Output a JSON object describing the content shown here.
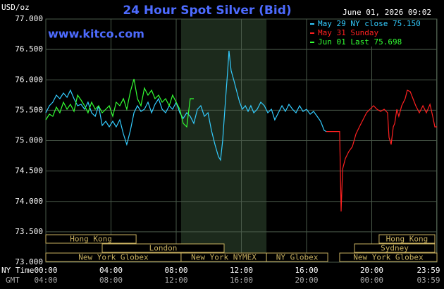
{
  "chart_data": {
    "type": "line",
    "title": "24 Hour Spot Silver (Bid)",
    "unit_label": "USD/oz",
    "timestamp": "June 01, 2026 09:02",
    "watermark": "www.kitco.com",
    "x_label": "NY Time",
    "x2_label": "GMT",
    "xlim": [
      0,
      24
    ],
    "xticks": [
      {
        "value": 0,
        "label": "00:00"
      },
      {
        "value": 4,
        "label": "04:00"
      },
      {
        "value": 8,
        "label": "08:00"
      },
      {
        "value": 12,
        "label": "12:00"
      },
      {
        "value": 16,
        "label": "16:00"
      },
      {
        "value": 20,
        "label": "20:00"
      },
      {
        "value": 23.98,
        "label": "23:59"
      }
    ],
    "gmt_labels": [
      "04:00",
      "08:00",
      "12:00",
      "16:00",
      "20:00",
      "00:00",
      "03:59"
    ],
    "ylim": [
      73,
      77
    ],
    "yticks": [
      {
        "value": 73,
        "label": "73.000"
      },
      {
        "value": 73.5,
        "label": "73.500"
      },
      {
        "value": 74,
        "label": "74.000"
      },
      {
        "value": 74.5,
        "label": "74.500"
      },
      {
        "value": 75,
        "label": "75.000"
      },
      {
        "value": 75.5,
        "label": "75.500"
      },
      {
        "value": 76,
        "label": "76.000"
      },
      {
        "value": 76.5,
        "label": "76.500"
      },
      {
        "value": 77,
        "label": "77.000"
      }
    ],
    "grid": true,
    "legend": "top-right",
    "market_hours": [
      [
        {
          "name": "Hong Kong",
          "start": 0,
          "end": 5.54
        },
        {
          "name": "Hong Kong",
          "start": 20.45,
          "end": 23.87
        }
      ],
      [
        {
          "name": "London",
          "start": 3.46,
          "end": 10.94
        },
        {
          "name": "Sydney",
          "start": 18.94,
          "end": 23.87
        }
      ],
      [
        {
          "name": "New York Globex",
          "start": 0,
          "end": 8.3
        },
        {
          "name": "New York NYMEX",
          "start": 8.3,
          "end": 13.54
        },
        {
          "name": "NY Globex",
          "start": 13.54,
          "end": 17.3
        },
        {
          "name": "New York Globex",
          "start": 18.03,
          "end": 24
        }
      ]
    ],
    "series": [
      {
        "name": "May 29 NY close 75.150",
        "color": "#33ccff",
        "x": [
          0,
          0.22,
          0.43,
          0.65,
          0.86,
          1.08,
          1.3,
          1.51,
          1.73,
          1.95,
          2.16,
          2.38,
          2.59,
          2.81,
          3.03,
          3.24,
          3.46,
          3.68,
          3.89,
          4.11,
          4.32,
          4.54,
          4.76,
          4.97,
          5.19,
          5.41,
          5.62,
          5.84,
          6.05,
          6.27,
          6.49,
          6.7,
          6.92,
          7.14,
          7.35,
          7.57,
          7.78,
          8,
          8.22,
          8.43,
          8.65,
          8.86,
          9.08,
          9.3,
          9.51,
          9.73,
          9.95,
          10.16,
          10.38,
          10.59,
          10.72,
          10.85,
          11.03,
          11.16,
          11.24,
          11.37,
          11.55,
          11.72,
          11.89,
          12.06,
          12.24,
          12.41,
          12.58,
          12.76,
          12.97,
          13.19,
          13.41,
          13.62,
          13.84,
          14.05,
          14.27,
          14.49,
          14.7,
          14.92,
          15.14,
          15.35,
          15.57,
          15.78,
          16,
          16.22,
          16.43,
          16.65,
          16.86,
          17.08,
          17.21
        ],
        "values": [
          75.458,
          75.574,
          75.632,
          75.748,
          75.69,
          75.783,
          75.713,
          75.829,
          75.69,
          75.574,
          75.597,
          75.516,
          75.632,
          75.458,
          75.4,
          75.574,
          75.249,
          75.319,
          75.226,
          75.319,
          75.226,
          75.342,
          75.11,
          74.936,
          75.168,
          75.458,
          75.574,
          75.481,
          75.516,
          75.632,
          75.458,
          75.597,
          75.69,
          75.516,
          75.458,
          75.574,
          75.516,
          75.632,
          75.458,
          75.365,
          75.458,
          75.4,
          75.284,
          75.516,
          75.574,
          75.4,
          75.458,
          75.168,
          74.936,
          74.739,
          74.681,
          74.994,
          75.69,
          76.154,
          76.478,
          76.154,
          75.98,
          75.806,
          75.632,
          75.516,
          75.574,
          75.481,
          75.574,
          75.458,
          75.516,
          75.632,
          75.574,
          75.458,
          75.516,
          75.342,
          75.458,
          75.574,
          75.481,
          75.597,
          75.516,
          75.458,
          75.574,
          75.481,
          75.516,
          75.435,
          75.481,
          75.4,
          75.319,
          75.168,
          75.15
        ]
      },
      {
        "name": "May 31 Sunday",
        "color": "#ff2020",
        "x": [
          17.21,
          18.03,
          18.08,
          18.12,
          18.21,
          18.38,
          18.59,
          18.81,
          19.03,
          19.24,
          19.46,
          19.68,
          19.89,
          20.11,
          20.32,
          20.54,
          20.76,
          20.97,
          21.06,
          21.19,
          21.32,
          21.41,
          21.54,
          21.66,
          21.84,
          22.05,
          22.18,
          22.36,
          22.53,
          22.7,
          22.92,
          23.14,
          23.35,
          23.57,
          23.74,
          23.87,
          24
        ],
        "values": [
          75.15,
          75.15,
          74.415,
          73.835,
          74.53,
          74.704,
          74.82,
          74.902,
          75.11,
          75.226,
          75.342,
          75.458,
          75.516,
          75.574,
          75.516,
          75.481,
          75.516,
          75.458,
          75.052,
          74.936,
          75.226,
          75.284,
          75.516,
          75.4,
          75.574,
          75.69,
          75.829,
          75.806,
          75.69,
          75.574,
          75.458,
          75.574,
          75.458,
          75.597,
          75.4,
          75.226,
          75.226
        ]
      },
      {
        "name": "Jun 01 Last 75.698",
        "color": "#33ff33",
        "x": [
          0,
          0.22,
          0.43,
          0.65,
          0.86,
          1.08,
          1.3,
          1.51,
          1.73,
          1.95,
          2.16,
          2.38,
          2.59,
          2.81,
          3.03,
          3.24,
          3.46,
          3.68,
          3.89,
          4.11,
          4.32,
          4.54,
          4.76,
          4.97,
          5.19,
          5.41,
          5.62,
          5.84,
          6.05,
          6.27,
          6.49,
          6.7,
          6.92,
          7.14,
          7.35,
          7.57,
          7.78,
          8,
          8.22,
          8.43,
          8.65,
          8.86,
          9.08
        ],
        "values": [
          75.342,
          75.435,
          75.4,
          75.551,
          75.458,
          75.632,
          75.516,
          75.597,
          75.481,
          75.748,
          75.667,
          75.574,
          75.458,
          75.632,
          75.516,
          75.574,
          75.458,
          75.516,
          75.574,
          75.4,
          75.632,
          75.574,
          75.69,
          75.516,
          75.806,
          76.014,
          75.69,
          75.574,
          75.864,
          75.748,
          75.829,
          75.69,
          75.748,
          75.632,
          75.69,
          75.574,
          75.748,
          75.632,
          75.516,
          75.284,
          75.226,
          75.69,
          75.69
        ]
      }
    ]
  }
}
